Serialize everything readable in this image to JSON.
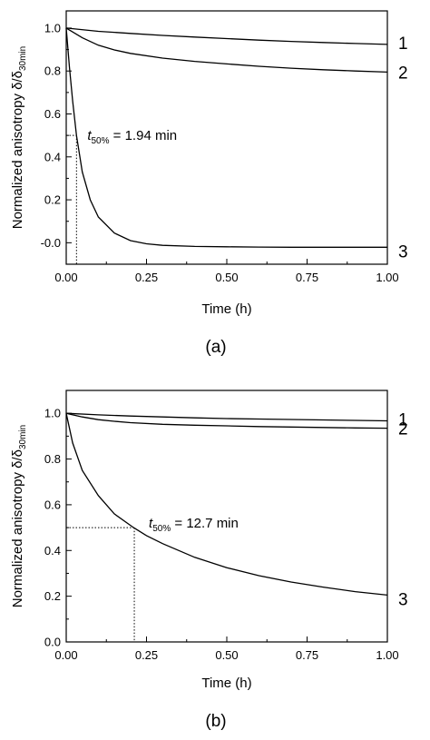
{
  "chart_data": [
    {
      "type": "line",
      "panel_label": "(a)",
      "xlabel": "Time (h)",
      "ylabel_main": "Normalized anisotropy δ/δ",
      "ylabel_sub": "30min",
      "xlim": [
        0,
        1.0
      ],
      "ylim": [
        -0.1,
        1.08
      ],
      "x_ticks": [
        "0.00",
        "0.25",
        "0.50",
        "0.75",
        "1.00"
      ],
      "y_ticks": [
        "-0.0",
        "0.2",
        "0.4",
        "0.6",
        "0.8",
        "1.0"
      ],
      "series": [
        {
          "name": "1",
          "x": [
            0,
            0.1,
            0.2,
            0.3,
            0.4,
            0.5,
            0.6,
            0.7,
            0.8,
            0.9,
            1.0
          ],
          "y": [
            1.0,
            0.985,
            0.975,
            0.966,
            0.958,
            0.951,
            0.944,
            0.938,
            0.933,
            0.928,
            0.924
          ]
        },
        {
          "name": "2",
          "x": [
            0,
            0.05,
            0.1,
            0.15,
            0.2,
            0.3,
            0.4,
            0.5,
            0.6,
            0.7,
            0.8,
            0.9,
            1.0
          ],
          "y": [
            1.0,
            0.955,
            0.92,
            0.898,
            0.882,
            0.86,
            0.845,
            0.833,
            0.822,
            0.813,
            0.806,
            0.8,
            0.795
          ]
        },
        {
          "name": "3",
          "x": [
            0,
            0.01,
            0.02,
            0.032,
            0.05,
            0.075,
            0.1,
            0.15,
            0.2,
            0.25,
            0.3,
            0.4,
            0.5,
            0.6,
            0.7,
            0.8,
            0.9,
            1.0
          ],
          "y": [
            1.0,
            0.82,
            0.66,
            0.5,
            0.33,
            0.2,
            0.12,
            0.045,
            0.01,
            -0.005,
            -0.012,
            -0.017,
            -0.019,
            -0.02,
            -0.021,
            -0.021,
            -0.021,
            -0.021
          ]
        }
      ],
      "annotation": {
        "text_main": "t",
        "text_sub": "50%",
        "text_rest": " = 1.94 min",
        "x": 0.032,
        "y": 0.5
      }
    },
    {
      "type": "line",
      "panel_label": "(b)",
      "xlabel": "Time (h)",
      "ylabel_main": "Normalized anisotropy δ/δ",
      "ylabel_sub": "30min",
      "xlim": [
        0,
        1.0
      ],
      "ylim": [
        0,
        1.1
      ],
      "x_ticks": [
        "0.00",
        "0.25",
        "0.50",
        "0.75",
        "1.00"
      ],
      "y_ticks": [
        "0.0",
        "0.2",
        "0.4",
        "0.6",
        "0.8",
        "1.0"
      ],
      "series": [
        {
          "name": "1",
          "x": [
            0,
            0.1,
            0.2,
            0.3,
            0.4,
            0.5,
            0.6,
            0.7,
            0.8,
            0.9,
            1.0
          ],
          "y": [
            1.0,
            0.993,
            0.988,
            0.984,
            0.98,
            0.977,
            0.975,
            0.973,
            0.971,
            0.969,
            0.967
          ]
        },
        {
          "name": "2",
          "x": [
            0,
            0.05,
            0.1,
            0.15,
            0.2,
            0.3,
            0.4,
            0.5,
            0.6,
            0.7,
            0.8,
            0.9,
            1.0
          ],
          "y": [
            1.0,
            0.984,
            0.972,
            0.965,
            0.959,
            0.952,
            0.948,
            0.945,
            0.942,
            0.94,
            0.938,
            0.936,
            0.935
          ]
        },
        {
          "name": "3",
          "x": [
            0,
            0.02,
            0.05,
            0.1,
            0.15,
            0.21,
            0.25,
            0.3,
            0.4,
            0.5,
            0.6,
            0.7,
            0.8,
            0.9,
            1.0
          ],
          "y": [
            1.0,
            0.87,
            0.75,
            0.64,
            0.56,
            0.5,
            0.465,
            0.43,
            0.37,
            0.325,
            0.29,
            0.262,
            0.24,
            0.22,
            0.205
          ]
        }
      ],
      "annotation": {
        "text_main": "t",
        "text_sub": "50%",
        "text_rest": " = 12.7 min",
        "x": 0.212,
        "y": 0.5
      }
    }
  ]
}
